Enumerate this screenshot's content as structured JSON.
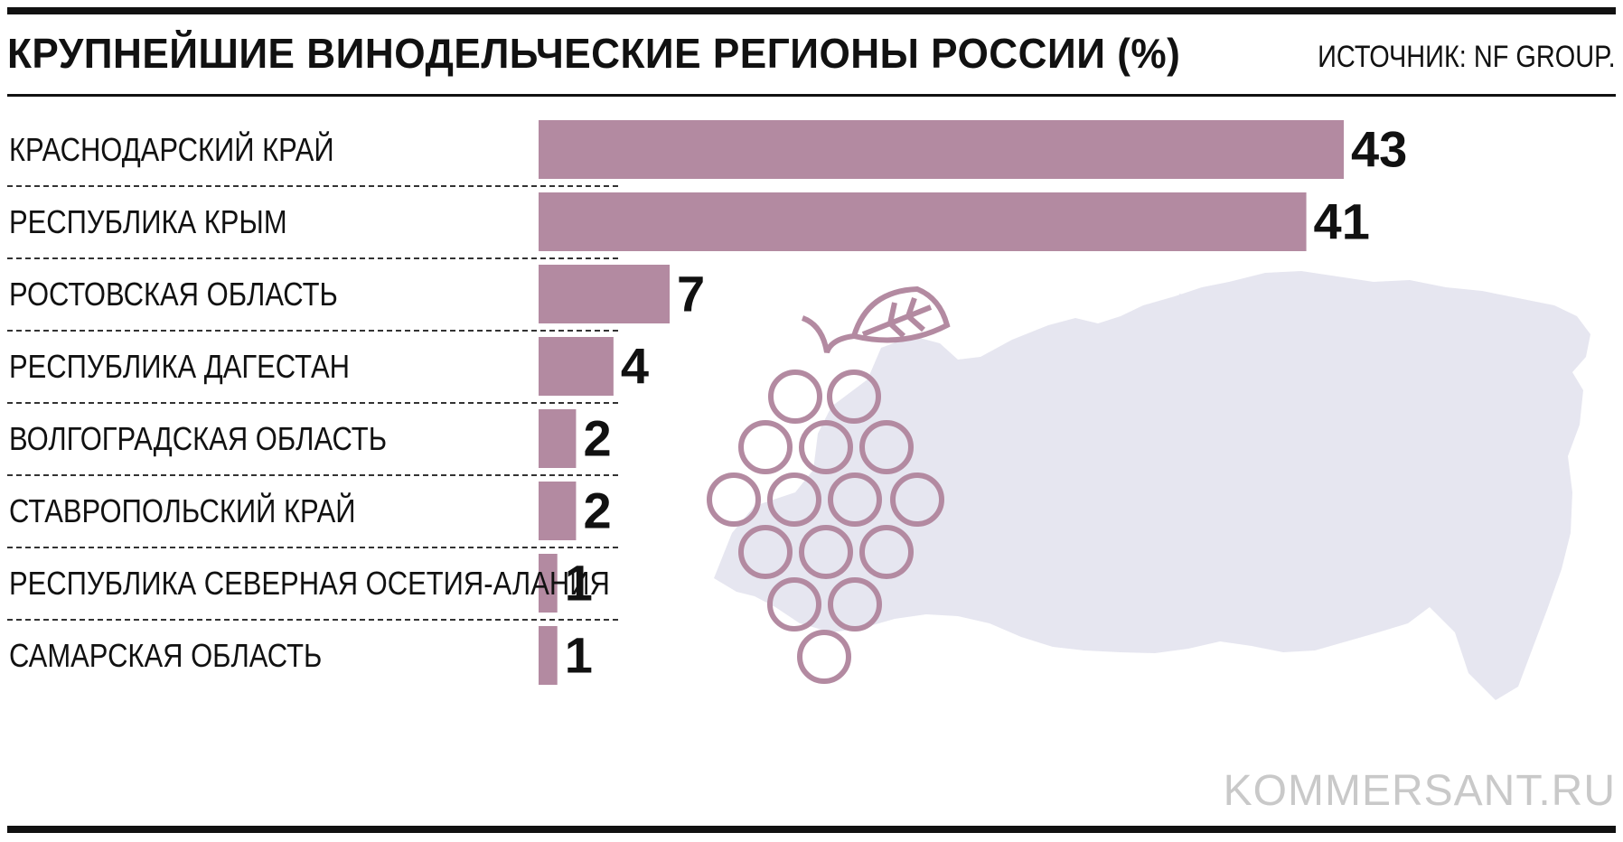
{
  "header": {
    "title": "КРУПНЕЙШИЕ ВИНОДЕЛЬЧЕСКИЕ РЕГИОНЫ РОССИИ (%)",
    "source": "ИСТОЧНИК: NF GROUP."
  },
  "watermark": "KOMMERSANT.RU",
  "colors": {
    "bar": "#b38aa1",
    "map": "#e6e6f0",
    "grape_outline": "#b38aa1",
    "text": "#111111",
    "watermark": "#c9c9c9"
  },
  "decor": {
    "background_icons": [
      "russia-map-silhouette",
      "grape-bunch-icon"
    ]
  },
  "chart_data": {
    "type": "bar",
    "orientation": "horizontal",
    "title": "КРУПНЕЙШИЕ ВИНОДЕЛЬЧЕСКИЕ РЕГИОНЫ РОССИИ (%)",
    "categories": [
      "КРАСНОДАРСКИЙ КРАЙ",
      "РЕСПУБЛИКА КРЫМ",
      "РОСТОВСКАЯ ОБЛАСТЬ",
      "РЕСПУБЛИКА ДАГЕСТАН",
      "ВОЛГОГРАДСКАЯ ОБЛАСТЬ",
      "СТАВРОПОЛЬСКИЙ КРАЙ",
      "РЕСПУБЛИКА СЕВЕРНАЯ ОСЕТИЯ-АЛАНИЯ",
      "САМАРСКАЯ ОБЛАСТЬ"
    ],
    "values": [
      43,
      41,
      7,
      4,
      2,
      2,
      1,
      1
    ],
    "xlim": [
      0,
      43
    ],
    "grid": false,
    "legend": "none"
  }
}
